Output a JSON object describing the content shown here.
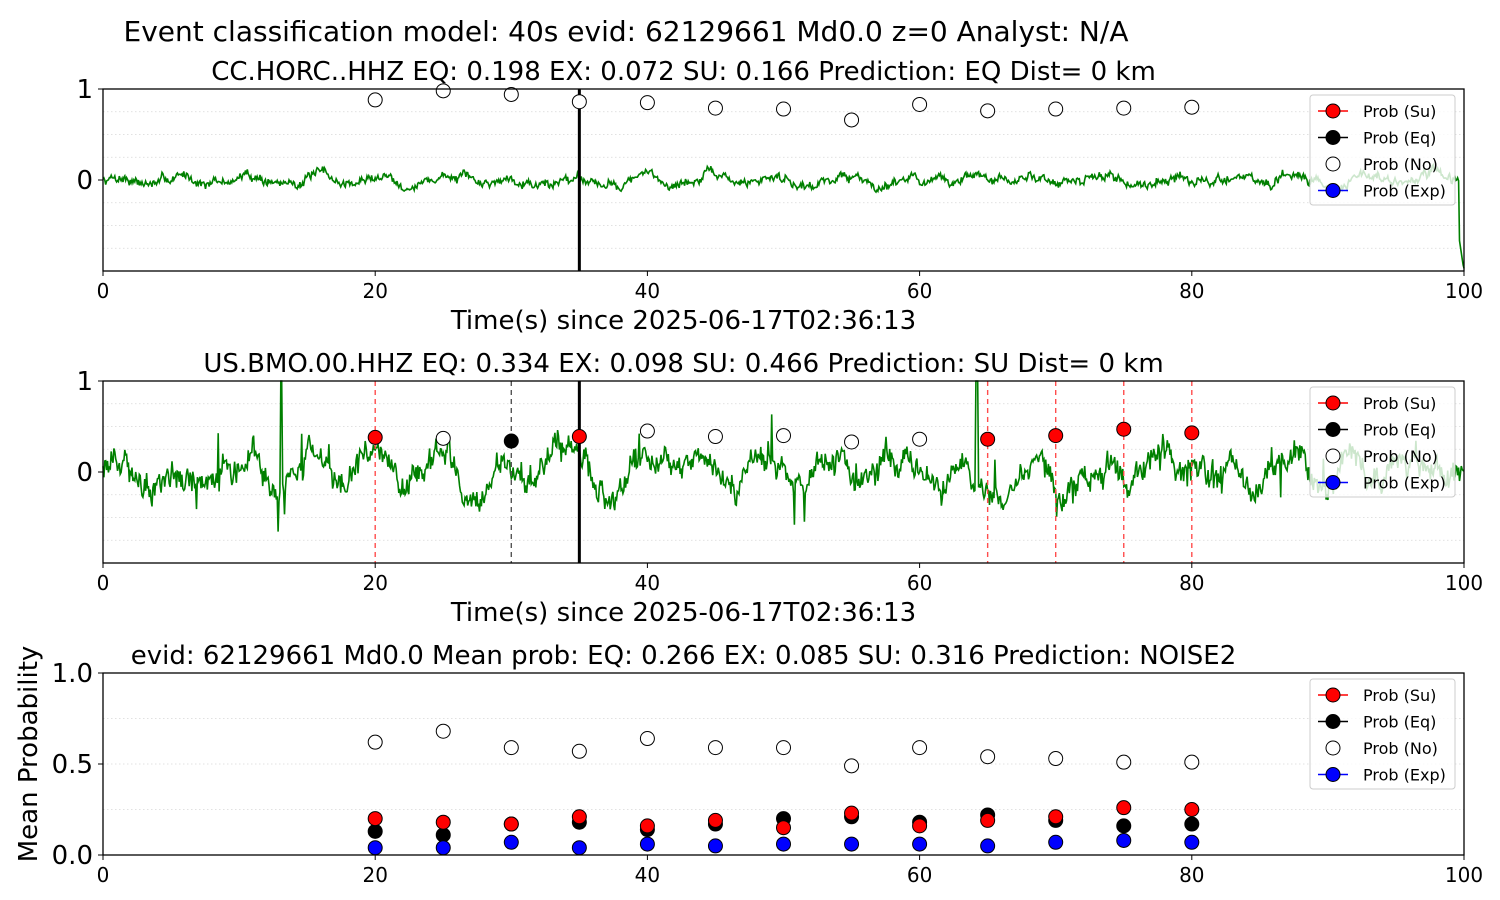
{
  "figure": {
    "suptitle": "Event classification model: 40s evid: 62129661 Md0.0 z=0 Analyst: N/A"
  },
  "legend_entries": [
    "Prob (Su)",
    "Prob (Eq)",
    "Prob (No)",
    "Prob (Exp)"
  ],
  "colors": {
    "su": "#ff0000",
    "eq": "#000000",
    "no": "#ffffff",
    "exp": "#0000ff",
    "waveform": "#008000",
    "marker_line": "#ff4d4d"
  },
  "chart_data": [
    {
      "type": "line",
      "title": "CC.HORC..HHZ   EQ: 0.198  EX: 0.072  SU: 0.166   Prediction: EQ    Dist= 0 km",
      "xlabel": "Time(s) since 2025-06-17T02:36:13",
      "xlim": [
        0,
        100
      ],
      "ylim": [
        -1,
        1
      ],
      "xticks": [
        0,
        20,
        40,
        60,
        80,
        100
      ],
      "xtick_labels": [
        "0",
        "20",
        "40",
        "60",
        "80",
        "100"
      ],
      "yticks": [
        0,
        1
      ],
      "ytick_labels": [
        "0",
        "1"
      ],
      "legend": "top-right",
      "grid": "horizontal dotted",
      "vertical_lines": [
        {
          "x": 35,
          "style": "solid black"
        }
      ],
      "series": [
        {
          "name": "Prob (No)",
          "x": [
            20,
            25,
            30,
            35,
            40,
            45,
            50,
            55,
            60,
            65,
            70,
            75,
            80
          ],
          "y": [
            0.88,
            0.98,
            0.94,
            0.86,
            0.85,
            0.79,
            0.78,
            0.66,
            0.83,
            0.76,
            0.78,
            0.79,
            0.8
          ]
        }
      ],
      "waveform": {
        "amplitude": 0.1,
        "seed": 7,
        "end_drop": true
      }
    },
    {
      "type": "line",
      "title": "US.BMO.00.HHZ   EQ: 0.334  EX: 0.098  SU: 0.466   Prediction: SU    Dist= 0 km",
      "xlabel": "Time(s) since 2025-06-17T02:36:13",
      "xlim": [
        0,
        100
      ],
      "ylim": [
        -1,
        1
      ],
      "xticks": [
        0,
        20,
        40,
        60,
        80,
        100
      ],
      "xtick_labels": [
        "0",
        "20",
        "40",
        "60",
        "80",
        "100"
      ],
      "yticks": [
        0,
        1
      ],
      "ytick_labels": [
        "0",
        "1"
      ],
      "legend": "top-right",
      "grid": "horizontal dotted",
      "vertical_lines": [
        {
          "x": 20,
          "style": "dashed red"
        },
        {
          "x": 30,
          "style": "dashed gray"
        },
        {
          "x": 35,
          "style": "solid black"
        },
        {
          "x": 65,
          "style": "dashed red"
        },
        {
          "x": 70,
          "style": "dashed red"
        },
        {
          "x": 75,
          "style": "dashed red"
        },
        {
          "x": 80,
          "style": "dashed red"
        }
      ],
      "series": [
        {
          "name": "Prob (Su)",
          "x": [
            20,
            35,
            65,
            70,
            75,
            80
          ],
          "y": [
            0.38,
            0.39,
            0.36,
            0.4,
            0.47,
            0.43
          ]
        },
        {
          "name": "Prob (Eq)",
          "x": [
            30
          ],
          "y": [
            0.34
          ]
        },
        {
          "name": "Prob (No)",
          "x": [
            25,
            40,
            45,
            50,
            55,
            60
          ],
          "y": [
            0.37,
            0.45,
            0.39,
            0.4,
            0.33,
            0.36
          ]
        }
      ],
      "waveform": {
        "amplitude": 0.3,
        "seed": 13,
        "end_drop": false
      }
    },
    {
      "type": "scatter",
      "title": "evid: 62129661  Md0.0   Mean prob:   EQ: 0.266  EX: 0.085  SU: 0.316   Prediction: NOISE2",
      "xlabel": "",
      "ylabel": "Mean Probability",
      "xlim": [
        0,
        100
      ],
      "ylim": [
        0,
        1
      ],
      "xticks": [
        0,
        20,
        40,
        60,
        80,
        100
      ],
      "xtick_labels": [
        "0",
        "20",
        "40",
        "60",
        "80",
        "100"
      ],
      "yticks": [
        0,
        0.5,
        1
      ],
      "ytick_labels": [
        "0.0",
        "0.5",
        "1.0"
      ],
      "legend": "top-right",
      "grid": "horizontal dotted",
      "vertical_lines": [],
      "series": [
        {
          "name": "Prob (No)",
          "x": [
            20,
            25,
            30,
            35,
            40,
            45,
            50,
            55,
            60,
            65,
            70,
            75,
            80
          ],
          "y": [
            0.62,
            0.68,
            0.59,
            0.57,
            0.64,
            0.59,
            0.59,
            0.49,
            0.59,
            0.54,
            0.53,
            0.51,
            0.51
          ]
        },
        {
          "name": "Prob (Eq)",
          "x": [
            20,
            25,
            30,
            35,
            40,
            45,
            50,
            55,
            60,
            65,
            70,
            75,
            80
          ],
          "y": [
            0.13,
            0.11,
            0.17,
            0.18,
            0.14,
            0.17,
            0.2,
            0.21,
            0.18,
            0.22,
            0.19,
            0.16,
            0.17
          ]
        },
        {
          "name": "Prob (Su)",
          "x": [
            20,
            25,
            30,
            35,
            40,
            45,
            50,
            55,
            60,
            65,
            70,
            75,
            80
          ],
          "y": [
            0.2,
            0.18,
            0.17,
            0.21,
            0.16,
            0.19,
            0.15,
            0.23,
            0.16,
            0.19,
            0.21,
            0.26,
            0.25
          ]
        },
        {
          "name": "Prob (Exp)",
          "x": [
            20,
            25,
            30,
            35,
            40,
            45,
            50,
            55,
            60,
            65,
            70,
            75,
            80
          ],
          "y": [
            0.04,
            0.04,
            0.07,
            0.04,
            0.06,
            0.05,
            0.06,
            0.06,
            0.06,
            0.05,
            0.07,
            0.08,
            0.07
          ]
        }
      ]
    }
  ]
}
